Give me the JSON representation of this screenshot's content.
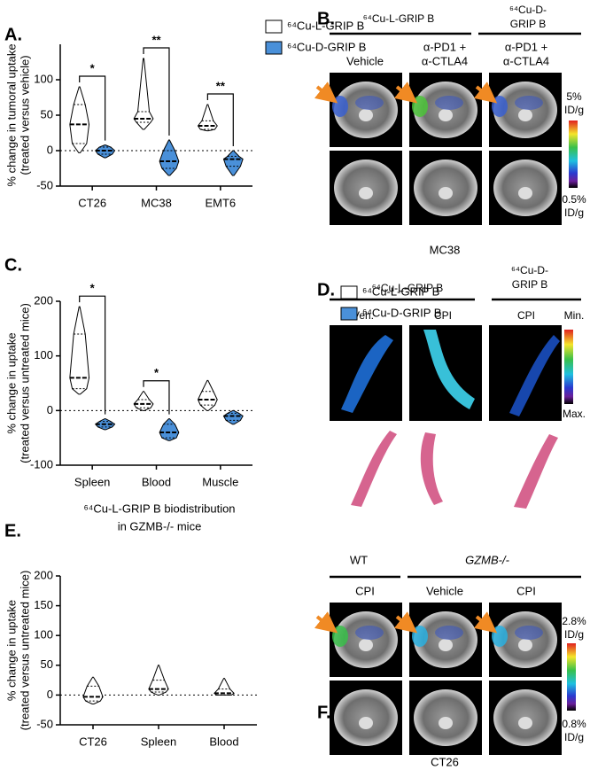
{
  "chart_data": [
    {
      "type": "violin",
      "label": "A.",
      "y_label": [
        "% change in tumoral uptake",
        "(treated versus vehicle)"
      ],
      "categories": [
        "CT26",
        "MC38",
        "EMT6"
      ],
      "ylim": [
        -50,
        150
      ],
      "yticks": [
        -50,
        0,
        50,
        100
      ],
      "reference_line": 0,
      "series": [
        {
          "name": "⁶⁴Cu-L-GRIP B",
          "color": "#ffffff",
          "values": [
            {
              "min": -3,
              "q1": 10,
              "median": 37,
              "q3": 65,
              "max": 90
            },
            {
              "min": 30,
              "q1": 40,
              "median": 45,
              "q3": 55,
              "max": 130
            },
            {
              "min": 28,
              "q1": 30,
              "median": 35,
              "q3": 42,
              "max": 65
            }
          ]
        },
        {
          "name": "⁶⁴Cu-D-GRIP B",
          "color": "#4a90d9",
          "values": [
            {
              "min": -10,
              "q1": -5,
              "median": 0,
              "q3": 5,
              "max": 8
            },
            {
              "min": -35,
              "q1": -25,
              "median": -15,
              "q3": 0,
              "max": 15
            },
            {
              "min": -35,
              "q1": -22,
              "median": -12,
              "q3": -8,
              "max": 0
            }
          ]
        }
      ],
      "annotations": [
        "*",
        "**",
        "**"
      ]
    },
    {
      "type": "violin",
      "label": "C.",
      "y_label": [
        "% change in uptake",
        "(treated versus untreated mice)"
      ],
      "categories": [
        "Spleen",
        "Blood",
        "Muscle"
      ],
      "ylim": [
        -100,
        200
      ],
      "yticks": [
        -100,
        0,
        100,
        200
      ],
      "reference_line": 0,
      "series": [
        {
          "name": "⁶⁴Cu-L-GRIP B",
          "color": "#ffffff",
          "values": [
            {
              "min": 30,
              "q1": 40,
              "median": 60,
              "q3": 140,
              "max": 190
            },
            {
              "min": 0,
              "q1": 5,
              "median": 12,
              "q3": 20,
              "max": 35
            },
            {
              "min": 0,
              "q1": 10,
              "median": 20,
              "q3": 35,
              "max": 55
            }
          ]
        },
        {
          "name": "⁶⁴Cu-D-GRIP B",
          "color": "#4a90d9",
          "values": [
            {
              "min": -35,
              "q1": -30,
              "median": -25,
              "q3": -20,
              "max": -15
            },
            {
              "min": -55,
              "q1": -50,
              "median": -40,
              "q3": -25,
              "max": -15
            },
            {
              "min": -25,
              "q1": -18,
              "median": -10,
              "q3": -5,
              "max": 0
            }
          ]
        }
      ],
      "annotations": [
        "*",
        "*",
        null
      ]
    },
    {
      "type": "violin",
      "label": "E.",
      "title": [
        "⁶⁴Cu-L-GRIP B biodistribution",
        "in GZMB-/- mice"
      ],
      "y_label": [
        "% change in uptake",
        "(treated versus untreated mice)"
      ],
      "categories": [
        "CT26",
        "Spleen",
        "Blood"
      ],
      "ylim": [
        -50,
        200
      ],
      "yticks": [
        -50,
        0,
        50,
        100,
        150,
        200
      ],
      "reference_line": 0,
      "series": [
        {
          "name": "⁶⁴Cu-L-GRIP B",
          "color": "#ffffff",
          "values": [
            {
              "min": -15,
              "q1": -10,
              "median": -3,
              "q3": 15,
              "max": 30
            },
            {
              "min": 0,
              "q1": 5,
              "median": 10,
              "q3": 25,
              "max": 50
            },
            {
              "min": 0,
              "q1": 0,
              "median": 3,
              "q3": 10,
              "max": 28
            }
          ]
        }
      ]
    }
  ],
  "panel_b": {
    "label": "B.",
    "group_1": "⁶⁴Cu-L-GRIP B",
    "group_2": [
      "⁶⁴Cu-D-",
      "GRIP B"
    ],
    "columns": [
      [
        "Vehicle"
      ],
      [
        "α-PD1 +",
        "α-CTLA4"
      ],
      [
        "α-PD1 +",
        "α-CTLA4"
      ]
    ],
    "scale_max": [
      "5%",
      "ID/g"
    ],
    "scale_min": [
      "0.5%",
      "ID/g"
    ],
    "footer": "MC38"
  },
  "panel_d": {
    "label": "D.",
    "group_1": "⁶⁴Cu-L-GRIP B",
    "group_2": [
      "⁶⁴Cu-D-",
      "GRIP B"
    ],
    "columns": [
      "Veh.",
      "CPI",
      "CPI"
    ],
    "scale_top": "Min.",
    "scale_bottom": "Max."
  },
  "panel_f": {
    "label": "F.",
    "group_1": "WT",
    "group_2": "GZMB-/-",
    "columns": [
      "CPI",
      "Vehicle",
      "CPI"
    ],
    "scale_max": [
      "2.8%",
      "ID/g"
    ],
    "scale_min": [
      "0.8%",
      "ID/g"
    ],
    "footer": "CT26"
  }
}
